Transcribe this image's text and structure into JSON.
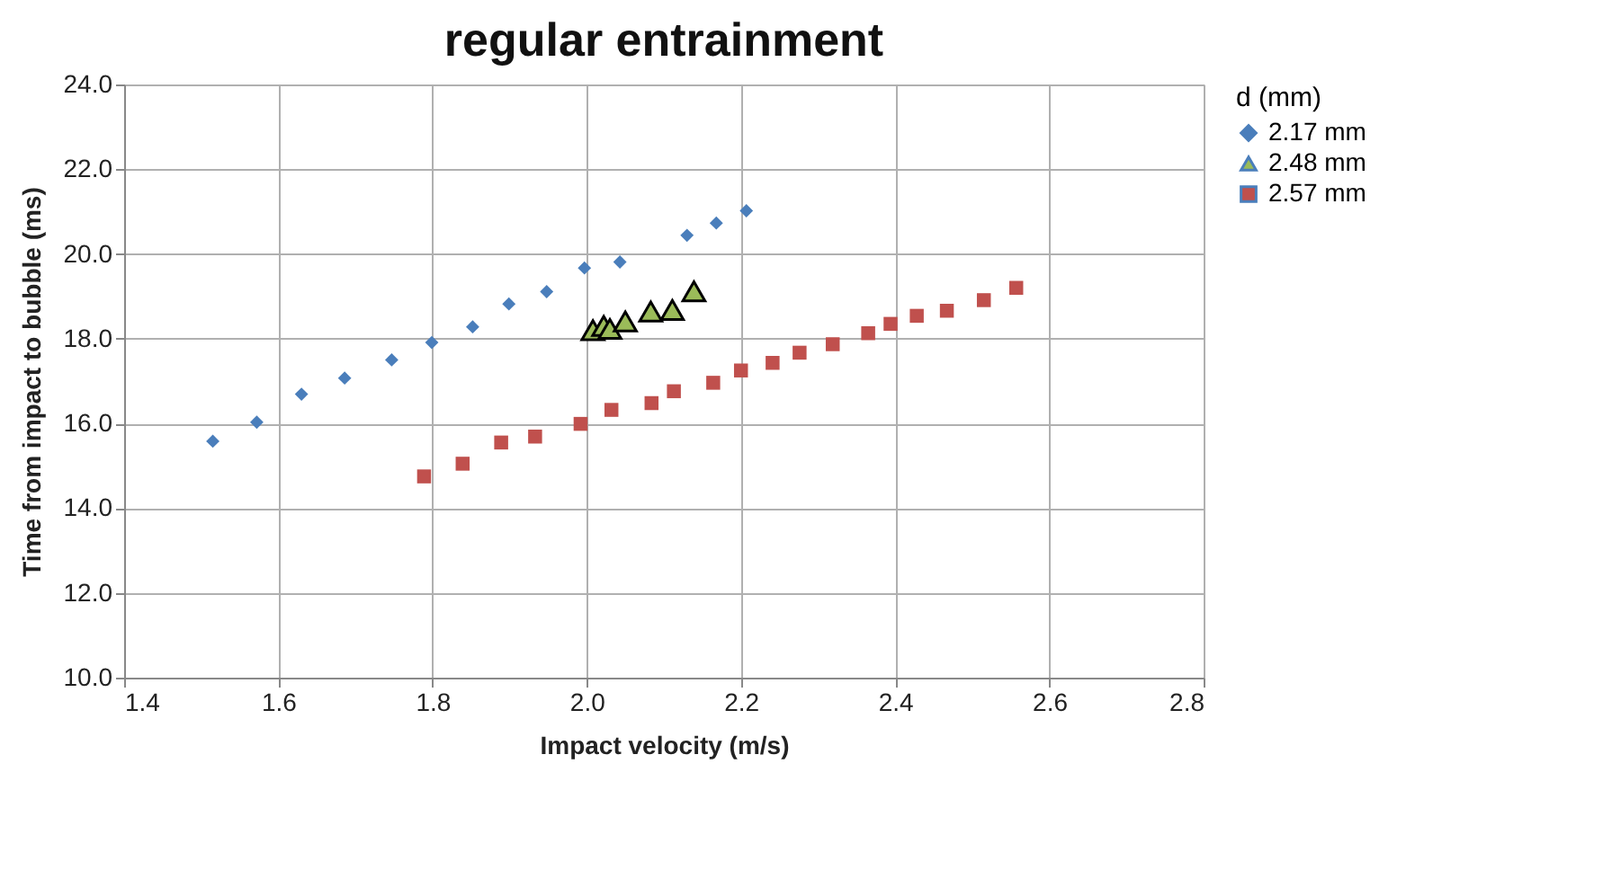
{
  "chart_data": {
    "type": "scatter",
    "title": "regular entrainment",
    "xlabel": "Impact velocity (m/s)",
    "ylabel": "Time from impact to bubble  (ms)",
    "legend_title": "d (mm)",
    "legend": "right",
    "grid": true,
    "xlim": [
      1.4,
      2.8
    ],
    "xticks": [
      1.4,
      1.6,
      1.8,
      {
        "value": 2,
        "label": "2.0"
      },
      2.2,
      2.4,
      2.6,
      2.8
    ],
    "ylim": [
      10,
      24
    ],
    "yticks": [
      {
        "value": 10,
        "label": "10.0"
      },
      {
        "value": 12,
        "label": "12.0"
      },
      {
        "value": 14,
        "label": "14.0"
      },
      {
        "value": 16,
        "label": "16.0"
      },
      {
        "value": 18,
        "label": "18.0"
      },
      {
        "value": 20,
        "label": "20.0"
      },
      {
        "value": 22,
        "label": "22.0"
      },
      {
        "value": 24,
        "label": "24.0"
      }
    ],
    "series": [
      {
        "name": "2.17 mm",
        "color": "#4a7ebb",
        "marker": "diamond",
        "x": [
          1.515,
          1.572,
          1.63,
          1.686,
          1.747,
          1.799,
          1.852,
          1.899,
          1.948,
          1.997,
          2.043,
          2.13,
          2.168,
          2.207
        ],
        "values": [
          15.58,
          16.03,
          16.69,
          17.07,
          17.5,
          17.91,
          18.28,
          18.82,
          19.11,
          19.67,
          19.81,
          20.44,
          20.73,
          21.02
        ]
      },
      {
        "name": "2.48 mm",
        "color": "#9bbb59",
        "marker": "triangle",
        "x": [
          2.008,
          2.022,
          2.03,
          2.05,
          2.083,
          2.111,
          2.139
        ],
        "values": [
          18.2,
          18.3,
          18.23,
          18.41,
          18.64,
          18.68,
          19.12
        ]
      },
      {
        "name": "2.57 mm",
        "color": "#c0504d",
        "marker": "square",
        "x": [
          1.789,
          1.839,
          1.889,
          1.933,
          1.992,
          2.032,
          2.084,
          2.113,
          2.164,
          2.2,
          2.241,
          2.276,
          2.319,
          2.365,
          2.394,
          2.428,
          2.467,
          2.515,
          2.557
        ],
        "values": [
          14.75,
          15.05,
          15.55,
          15.69,
          15.99,
          16.32,
          16.48,
          16.76,
          16.96,
          17.25,
          17.43,
          17.67,
          17.87,
          18.13,
          18.35,
          18.54,
          18.66,
          18.91,
          19.2
        ]
      }
    ]
  }
}
